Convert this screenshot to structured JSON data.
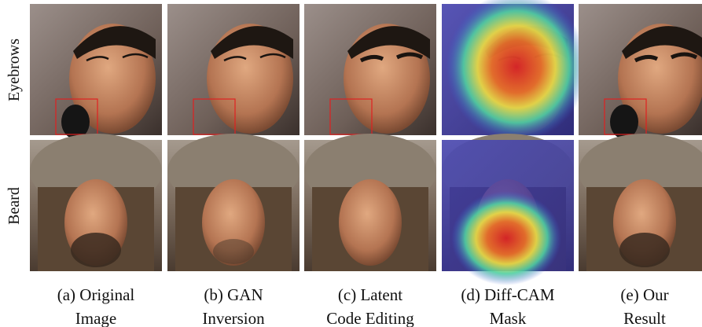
{
  "row_labels": [
    "Eyebrows",
    "Beard"
  ],
  "columns": [
    {
      "caption": [
        "(a) Original",
        "Image"
      ]
    },
    {
      "caption": [
        "(b) GAN",
        "Inversion"
      ]
    },
    {
      "caption": [
        "(c) Latent",
        "Code Editing"
      ]
    },
    {
      "caption": [
        "(d) Diff-CAM",
        "Mask"
      ]
    },
    {
      "caption": [
        "(e) Our",
        "Result"
      ]
    }
  ]
}
